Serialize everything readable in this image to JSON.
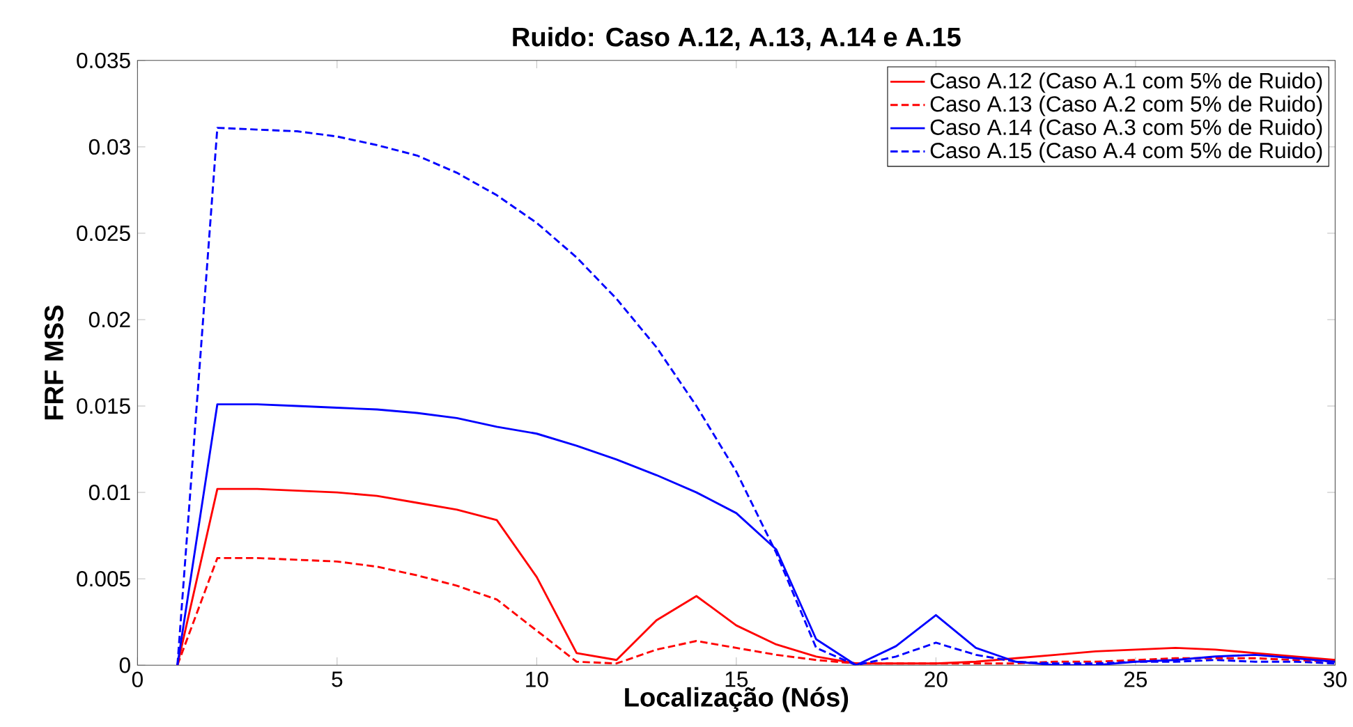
{
  "chart_data": {
    "type": "line",
    "title": "Ruido: Caso A.12, A.13, A.14 e A.15",
    "xlabel": "Localização (Nós)",
    "ylabel": "FRF MSS",
    "x": [
      1,
      2,
      3,
      4,
      5,
      6,
      7,
      8,
      9,
      10,
      11,
      12,
      13,
      14,
      15,
      16,
      17,
      18,
      19,
      20,
      21,
      22,
      23,
      24,
      25,
      26,
      27,
      28,
      29,
      30
    ],
    "xlim": [
      0,
      30
    ],
    "xticks": [
      0,
      5,
      10,
      15,
      20,
      25,
      30
    ],
    "ylim": [
      0,
      0.035
    ],
    "yticks": [
      0,
      0.005,
      0.01,
      0.015,
      0.02,
      0.025,
      0.03,
      0.035
    ],
    "grid": false,
    "legend": "top right",
    "marker": "none",
    "series": [
      {
        "name": "Caso A.12 (Caso A.1 com 5% de Ruido)",
        "color": "#ff0000",
        "line_style": "solid",
        "values": [
          0,
          0.0102,
          0.0102,
          0.0101,
          0.01,
          0.0098,
          0.0094,
          0.009,
          0.0084,
          0.0051,
          0.0007,
          0.0003,
          0.0026,
          0.004,
          0.0023,
          0.0012,
          0.0005,
          0.0001,
          0.0001,
          0.0001,
          0.0002,
          0.0004,
          0.0006,
          0.0008,
          0.0009,
          0.001,
          0.0009,
          0.0007,
          0.0005,
          0.0003
        ]
      },
      {
        "name": "Caso A.13 (Caso A.2 com 5% de Ruido)",
        "color": "#ff0000",
        "line_style": "dashed",
        "values": [
          0,
          0.0062,
          0.0062,
          0.0061,
          0.006,
          0.0057,
          0.0052,
          0.0046,
          0.0038,
          0.002,
          0.0002,
          0.0001,
          0.0009,
          0.0014,
          0.001,
          0.0006,
          0.0003,
          0.0001,
          0.0001,
          0.0001,
          0.0001,
          0.0001,
          0.0002,
          0.0002,
          0.0003,
          0.0004,
          0.0004,
          0.0004,
          0.0003,
          0.0002
        ]
      },
      {
        "name": "Caso A.14 (Caso A.3 com 5% de Ruido)",
        "color": "#0000ff",
        "line_style": "solid",
        "values": [
          0,
          0.0151,
          0.0151,
          0.015,
          0.0149,
          0.0148,
          0.0146,
          0.0143,
          0.0138,
          0.0134,
          0.0127,
          0.0119,
          0.011,
          0.01,
          0.0088,
          0.0067,
          0.0015,
          0,
          0.0011,
          0.0029,
          0.001,
          0.0002,
          0,
          0,
          0.0002,
          0.0003,
          0.0005,
          0.0006,
          0.0004,
          0.0002
        ]
      },
      {
        "name": "Caso A.15 (Caso A.4 com 5% de Ruido)",
        "color": "#0000ff",
        "line_style": "dashed",
        "values": [
          0,
          0.0311,
          0.031,
          0.0309,
          0.0306,
          0.0301,
          0.0295,
          0.0285,
          0.0272,
          0.0256,
          0.0236,
          0.0212,
          0.0184,
          0.015,
          0.0112,
          0.0065,
          0.001,
          0,
          0.0005,
          0.0013,
          0.0006,
          0.0002,
          0.0001,
          0.0001,
          0.0002,
          0.0002,
          0.0003,
          0.0002,
          0.0002,
          0.0001
        ]
      }
    ]
  }
}
